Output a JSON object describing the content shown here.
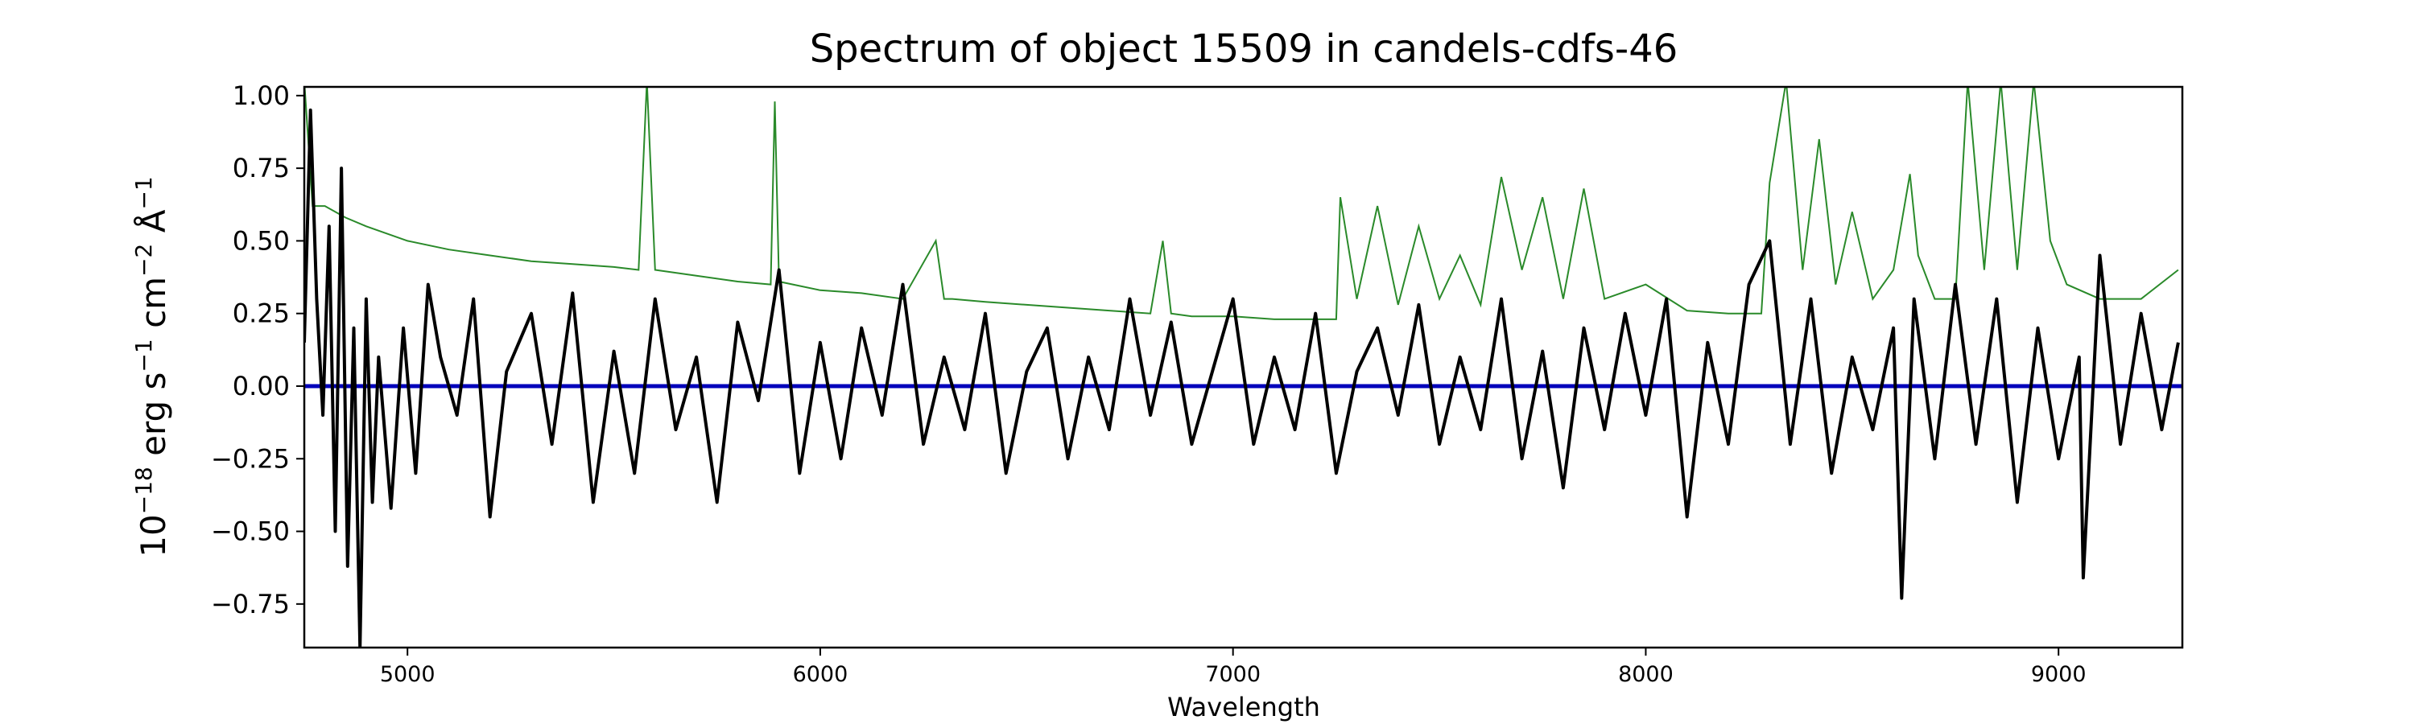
{
  "chart_data": {
    "type": "line",
    "title": "Spectrum of object 15509 in candels-cdfs-46",
    "xlabel": "Wavelength",
    "ylabel_parts": {
      "prefix": "10",
      "exp1": "−18",
      "unit1": " erg s",
      "exp2": "−1",
      "unit2": " cm",
      "exp3": "−2",
      "unit3": " Å",
      "exp4": "−1"
    },
    "xlim": [
      4750,
      9300
    ],
    "ylim": [
      -0.9,
      1.03
    ],
    "xticks": [
      5000,
      6000,
      7000,
      8000,
      9000
    ],
    "xtick_labels": [
      "5000",
      "6000",
      "7000",
      "8000",
      "9000"
    ],
    "yticks": [
      1.0,
      0.75,
      0.5,
      0.25,
      0.0,
      -0.25,
      -0.5,
      -0.75
    ],
    "ytick_labels": [
      "1.00",
      "0.75",
      "0.50",
      "0.25",
      "0.00",
      "−0.25",
      "−0.50",
      "−0.75"
    ],
    "grid": false,
    "colors": {
      "flux": "#000000",
      "zero_line": "#0000bb",
      "error": "#2a8a2a"
    },
    "series": [
      {
        "role": "flux",
        "x": [
          4750,
          4765,
          4780,
          4795,
          4810,
          4825,
          4840,
          4855,
          4870,
          4885,
          4900,
          4915,
          4930,
          4960,
          4990,
          5020,
          5050,
          5080,
          5120,
          5160,
          5200,
          5240,
          5300,
          5350,
          5400,
          5450,
          5500,
          5550,
          5600,
          5650,
          5700,
          5750,
          5800,
          5850,
          5900,
          5950,
          6000,
          6050,
          6100,
          6150,
          6200,
          6250,
          6300,
          6350,
          6400,
          6450,
          6500,
          6550,
          6600,
          6650,
          6700,
          6750,
          6800,
          6850,
          6900,
          6950,
          7000,
          7050,
          7100,
          7150,
          7200,
          7250,
          7300,
          7350,
          7400,
          7450,
          7500,
          7550,
          7600,
          7650,
          7700,
          7750,
          7800,
          7850,
          7900,
          7950,
          8000,
          8050,
          8100,
          8150,
          8200,
          8250,
          8300,
          8350,
          8400,
          8450,
          8500,
          8550,
          8600,
          8620,
          8650,
          8700,
          8750,
          8800,
          8850,
          8900,
          8950,
          9000,
          9050,
          9060,
          9100,
          9150,
          9200,
          9250,
          9290
        ],
        "y": [
          0.15,
          0.95,
          0.3,
          -0.1,
          0.55,
          -0.5,
          0.75,
          -0.62,
          0.2,
          -0.9,
          0.3,
          -0.4,
          0.1,
          -0.42,
          0.2,
          -0.3,
          0.35,
          0.1,
          -0.1,
          0.3,
          -0.45,
          0.05,
          0.25,
          -0.2,
          0.32,
          -0.4,
          0.12,
          -0.3,
          0.3,
          -0.15,
          0.1,
          -0.4,
          0.22,
          -0.05,
          0.4,
          -0.3,
          0.15,
          -0.25,
          0.2,
          -0.1,
          0.35,
          -0.2,
          0.1,
          -0.15,
          0.25,
          -0.3,
          0.05,
          0.2,
          -0.25,
          0.1,
          -0.15,
          0.3,
          -0.1,
          0.22,
          -0.2,
          0.05,
          0.3,
          -0.2,
          0.1,
          -0.15,
          0.25,
          -0.3,
          0.05,
          0.2,
          -0.1,
          0.28,
          -0.2,
          0.1,
          -0.15,
          0.3,
          -0.25,
          0.12,
          -0.35,
          0.2,
          -0.15,
          0.25,
          -0.1,
          0.3,
          -0.45,
          0.15,
          -0.2,
          0.35,
          0.5,
          -0.2,
          0.3,
          -0.3,
          0.1,
          -0.15,
          0.2,
          -0.73,
          0.3,
          -0.25,
          0.35,
          -0.2,
          0.3,
          -0.4,
          0.2,
          -0.25,
          0.1,
          -0.66,
          0.45,
          -0.2,
          0.25,
          -0.15,
          0.15
        ]
      },
      {
        "role": "error",
        "x": [
          4750,
          4770,
          4800,
          4850,
          4900,
          5000,
          5100,
          5200,
          5300,
          5400,
          5500,
          5560,
          5580,
          5600,
          5700,
          5800,
          5880,
          5890,
          5900,
          6000,
          6100,
          6200,
          6280,
          6300,
          6320,
          6400,
          6500,
          6600,
          6700,
          6800,
          6830,
          6850,
          6900,
          7000,
          7100,
          7200,
          7250,
          7260,
          7300,
          7350,
          7400,
          7450,
          7500,
          7550,
          7600,
          7650,
          7700,
          7750,
          7800,
          7850,
          7900,
          8000,
          8100,
          8200,
          8280,
          8300,
          8340,
          8380,
          8420,
          8460,
          8500,
          8550,
          8600,
          8640,
          8660,
          8700,
          8750,
          8780,
          8820,
          8860,
          8900,
          8940,
          8980,
          9020,
          9100,
          9200,
          9290
        ],
        "y": [
          1.05,
          0.62,
          0.62,
          0.58,
          0.55,
          0.5,
          0.47,
          0.45,
          0.43,
          0.42,
          0.41,
          0.4,
          1.05,
          0.4,
          0.38,
          0.36,
          0.35,
          0.98,
          0.36,
          0.33,
          0.32,
          0.3,
          0.5,
          0.3,
          0.3,
          0.29,
          0.28,
          0.27,
          0.26,
          0.25,
          0.5,
          0.25,
          0.24,
          0.24,
          0.23,
          0.23,
          0.23,
          0.65,
          0.3,
          0.62,
          0.28,
          0.55,
          0.3,
          0.45,
          0.28,
          0.72,
          0.4,
          0.65,
          0.3,
          0.68,
          0.3,
          0.35,
          0.26,
          0.25,
          0.25,
          0.7,
          1.05,
          0.4,
          0.85,
          0.35,
          0.6,
          0.3,
          0.4,
          0.73,
          0.45,
          0.3,
          0.3,
          1.05,
          0.4,
          1.05,
          0.4,
          1.05,
          0.5,
          0.35,
          0.3,
          0.3,
          0.4
        ]
      },
      {
        "role": "zero",
        "x": [
          4750,
          9300
        ],
        "y": [
          0,
          0
        ]
      }
    ]
  }
}
